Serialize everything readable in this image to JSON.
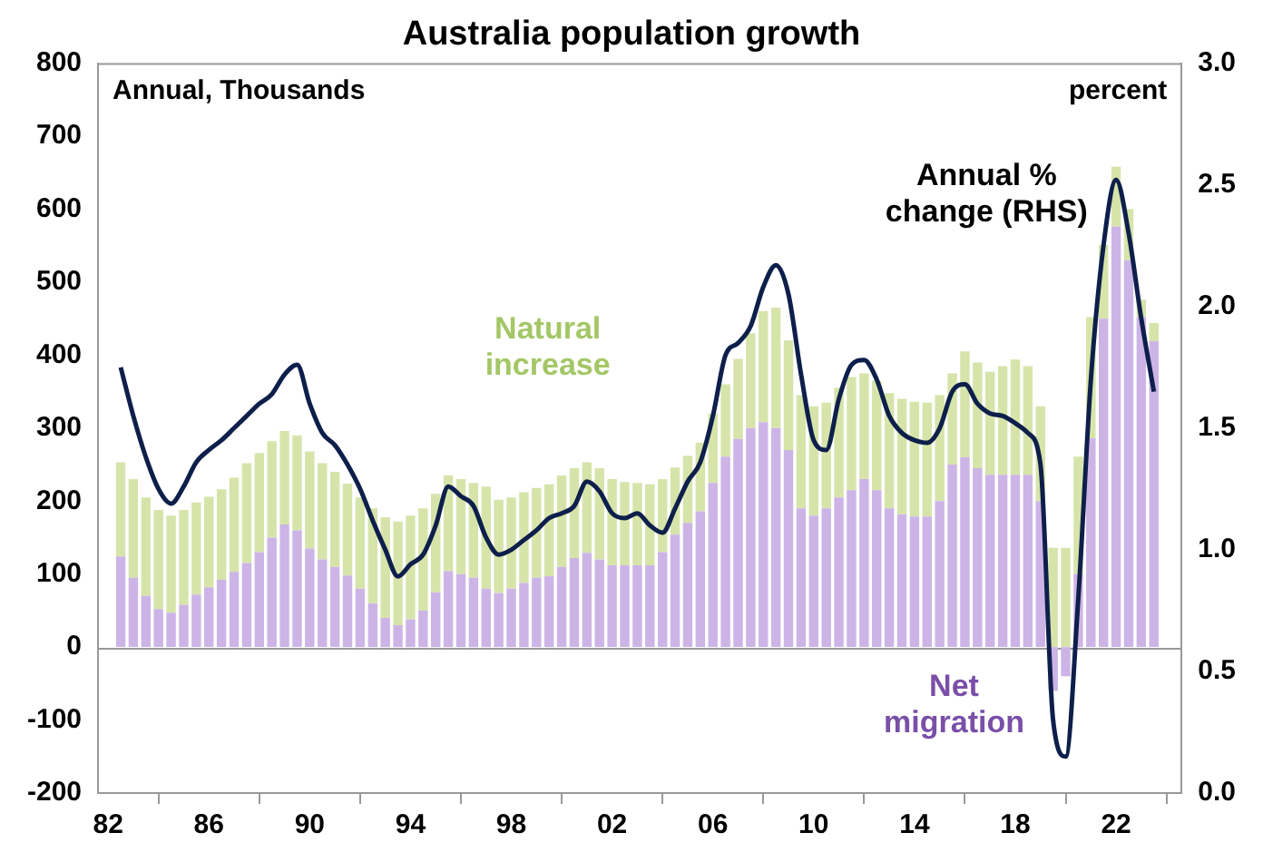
{
  "chart_data": {
    "type": "bar",
    "title": "Australia population growth",
    "ylabel": "Annual, Thousands",
    "y2label": "percent",
    "stacked": true,
    "x": [
      1982.5,
      1983,
      1983.5,
      1984,
      1984.5,
      1985,
      1985.5,
      1986,
      1986.5,
      1987,
      1987.5,
      1988,
      1988.5,
      1989,
      1989.5,
      1990,
      1990.5,
      1991,
      1991.5,
      1992,
      1992.5,
      1993,
      1993.5,
      1994,
      1994.5,
      1995,
      1995.5,
      1996,
      1996.5,
      1997,
      1997.5,
      1998,
      1998.5,
      1999,
      1999.5,
      2000,
      2000.5,
      2001,
      2001.5,
      2002,
      2002.5,
      2003,
      2003.5,
      2004,
      2004.5,
      2005,
      2005.5,
      2006,
      2006.5,
      2007,
      2007.5,
      2008,
      2008.5,
      2009,
      2009.5,
      2010,
      2010.5,
      2011,
      2011.5,
      2012,
      2012.5,
      2013,
      2013.5,
      2014,
      2014.5,
      2015,
      2015.5,
      2016,
      2016.5,
      2017,
      2017.5,
      2018,
      2018.5,
      2019,
      2019.5,
      2020,
      2020.5,
      2021,
      2021.5,
      2022,
      2022.5,
      2023,
      2023.5
    ],
    "series": [
      {
        "name": "Net migration",
        "color": "#cdb4e6",
        "values": [
          124,
          95,
          70,
          52,
          47,
          58,
          72,
          82,
          92,
          103,
          115,
          130,
          150,
          168,
          160,
          135,
          120,
          110,
          98,
          80,
          60,
          40,
          30,
          38,
          50,
          75,
          104,
          100,
          95,
          80,
          74,
          80,
          88,
          95,
          97,
          110,
          122,
          129,
          120,
          112,
          112,
          112,
          112,
          130,
          154,
          170,
          186,
          225,
          261,
          285,
          300,
          308,
          300,
          270,
          190,
          180,
          190,
          205,
          215,
          230,
          215,
          190,
          182,
          179,
          179,
          200,
          250,
          260,
          245,
          236,
          236,
          236,
          236,
          200,
          -60,
          -40,
          100,
          286,
          450,
          576,
          530,
          452,
          419
        ]
      },
      {
        "name": "Natural increase",
        "color": "#d6e4aa",
        "values": [
          129,
          135,
          135,
          136,
          133,
          130,
          126,
          124,
          124,
          129,
          137,
          136,
          132,
          128,
          130,
          133,
          132,
          130,
          126,
          125,
          130,
          138,
          142,
          142,
          140,
          135,
          131,
          130,
          130,
          140,
          128,
          125,
          124,
          123,
          126,
          125,
          123,
          124,
          125,
          118,
          114,
          113,
          111,
          100,
          92,
          92,
          94,
          95,
          99,
          110,
          130,
          152,
          165,
          150,
          155,
          150,
          145,
          150,
          155,
          145,
          150,
          158,
          158,
          157,
          156,
          145,
          125,
          145,
          145,
          141,
          149,
          158,
          149,
          130,
          136,
          136,
          161,
          166,
          101,
          82,
          70,
          24,
          25
        ]
      },
      {
        "name": "Annual % change (RHS)",
        "type": "line",
        "axis": "y2",
        "color": "#0d1f4a",
        "values": [
          1.75,
          1.55,
          1.38,
          1.25,
          1.19,
          1.26,
          1.36,
          1.41,
          1.45,
          1.5,
          1.55,
          1.6,
          1.64,
          1.72,
          1.76,
          1.6,
          1.48,
          1.43,
          1.35,
          1.25,
          1.12,
          1.0,
          0.89,
          0.94,
          0.98,
          1.1,
          1.26,
          1.22,
          1.18,
          1.05,
          0.98,
          1.0,
          1.04,
          1.08,
          1.13,
          1.15,
          1.18,
          1.28,
          1.24,
          1.15,
          1.13,
          1.15,
          1.1,
          1.07,
          1.17,
          1.28,
          1.36,
          1.55,
          1.8,
          1.85,
          1.92,
          2.08,
          2.17,
          2.05,
          1.72,
          1.45,
          1.41,
          1.62,
          1.76,
          1.78,
          1.7,
          1.55,
          1.48,
          1.45,
          1.44,
          1.5,
          1.65,
          1.68,
          1.6,
          1.56,
          1.55,
          1.52,
          1.48,
          1.35,
          0.3,
          0.15,
          0.8,
          1.7,
          2.25,
          2.52,
          2.3,
          1.95,
          1.65
        ]
      }
    ],
    "xlim": [
      1981.6,
      2024.6
    ],
    "xticks": [
      {
        "value": 1982,
        "label": "82"
      },
      {
        "value": 1986,
        "label": "86"
      },
      {
        "value": 1990,
        "label": "90"
      },
      {
        "value": 1994,
        "label": "94"
      },
      {
        "value": 1998,
        "label": "98"
      },
      {
        "value": 2002,
        "label": "02"
      },
      {
        "value": 2006,
        "label": "06"
      },
      {
        "value": 2010,
        "label": "10"
      },
      {
        "value": 2014,
        "label": "14"
      },
      {
        "value": 2018,
        "label": "18"
      },
      {
        "value": 2022,
        "label": "22"
      }
    ],
    "ylim": [
      -200,
      800
    ],
    "yticks": [
      -200,
      -100,
      0,
      100,
      200,
      300,
      400,
      500,
      600,
      700,
      800
    ],
    "y2lim": [
      0,
      3
    ],
    "y2ticks": [
      {
        "value": 0,
        "label": "0.0"
      },
      {
        "value": 0.5,
        "label": "0.5"
      },
      {
        "value": 1,
        "label": "1.0"
      },
      {
        "value": 1.5,
        "label": "1.5"
      },
      {
        "value": 2,
        "label": "2.0"
      },
      {
        "value": 2.5,
        "label": "2.5"
      },
      {
        "value": 3,
        "label": "3.0"
      }
    ],
    "ref_lines": [
      {
        "axis": "y",
        "value": 0,
        "color": "#999999"
      }
    ],
    "grid": false,
    "legend": false,
    "marker": "none",
    "line_style": "solid"
  }
}
